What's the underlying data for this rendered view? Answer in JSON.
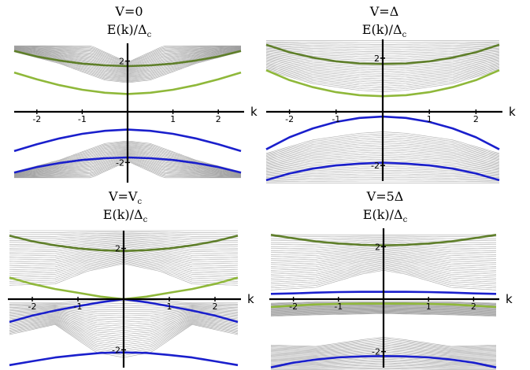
{
  "colors": {
    "bulk": "#9a9a9a",
    "green_upper": "#5f7f2a",
    "green_lower": "#8fb83a",
    "blue": "#1a1fcc",
    "axis": "#000000"
  },
  "chart_data": [
    {
      "type": "line",
      "title_var": "V=0",
      "title_sub": "",
      "ylabel": "E(k)/Δ",
      "ylabel_sub": "c",
      "xlabel": "k",
      "xlim": [
        -2.5,
        2.5
      ],
      "ylim": [
        -2.7,
        2.7
      ],
      "xticks": [
        "-2",
        "-1",
        "1",
        "2"
      ],
      "yticks": [
        "2",
        "-2"
      ],
      "series": [
        {
          "role": "bulk-upper",
          "min": [
            [
              -2.5,
              2.37
            ],
            [
              -1.5,
              1.9
            ],
            [
              -0.5,
              1.25
            ],
            [
              0,
              1.15
            ],
            [
              0.5,
              1.25
            ],
            [
              1.5,
              1.9
            ],
            [
              2.5,
              2.37
            ]
          ],
          "max": [
            [
              -2.5,
              2.6
            ],
            [
              -1.5,
              2.6
            ],
            [
              -0.8,
              2.6
            ],
            [
              0,
              1.95
            ],
            [
              0.8,
              2.6
            ],
            [
              1.5,
              2.6
            ],
            [
              2.5,
              2.6
            ]
          ]
        },
        {
          "role": "bulk-lower",
          "min": [
            [
              -2.5,
              -2.6
            ],
            [
              -0.8,
              -2.6
            ],
            [
              0,
              -1.95
            ],
            [
              0.8,
              -2.6
            ],
            [
              2.5,
              -2.6
            ]
          ],
          "max": [
            [
              -2.5,
              -2.37
            ],
            [
              -1.5,
              -1.9
            ],
            [
              -0.5,
              -1.25
            ],
            [
              0,
              -1.15
            ],
            [
              0.5,
              -1.25
            ],
            [
              1.5,
              -1.9
            ],
            [
              2.5,
              -2.37
            ]
          ]
        },
        {
          "role": "green-upper",
          "x": [
            -2.5,
            -2,
            -1.5,
            -1,
            -0.5,
            0,
            0.5,
            1,
            1.5,
            2,
            2.5
          ],
          "y": [
            2.4,
            2.18,
            2.02,
            1.9,
            1.83,
            1.8,
            1.83,
            1.9,
            2.02,
            2.18,
            2.4
          ]
        },
        {
          "role": "green-lower",
          "x": [
            -2.5,
            -2,
            -1.5,
            -1,
            -0.5,
            0,
            0.5,
            1,
            1.5,
            2,
            2.5
          ],
          "y": [
            1.55,
            1.28,
            1.05,
            0.87,
            0.75,
            0.7,
            0.75,
            0.87,
            1.05,
            1.28,
            1.55
          ]
        },
        {
          "role": "blue-upper",
          "x": [
            -2.5,
            -2,
            -1.5,
            -1,
            -0.5,
            0,
            0.5,
            1,
            1.5,
            2,
            2.5
          ],
          "y": [
            -1.55,
            -1.28,
            -1.05,
            -0.87,
            -0.75,
            -0.7,
            -0.75,
            -0.87,
            -1.05,
            -1.28,
            -1.55
          ]
        },
        {
          "role": "blue-lower",
          "x": [
            -2.5,
            -2,
            -1.5,
            -1,
            -0.5,
            0,
            0.5,
            1,
            1.5,
            2,
            2.5
          ],
          "y": [
            -2.4,
            -2.18,
            -2.02,
            -1.9,
            -1.83,
            -1.8,
            -1.83,
            -1.9,
            -2.02,
            -2.18,
            -2.4
          ]
        }
      ]
    },
    {
      "type": "line",
      "title_var": "V=Δ",
      "title_sub": "",
      "ylabel": "E(k)/Δ",
      "ylabel_sub": "c",
      "xlabel": "k",
      "xlim": [
        -2.5,
        2.5
      ],
      "ylim": [
        -2.7,
        2.7
      ],
      "xticks": [
        "-2",
        "-1",
        "1",
        "2"
      ],
      "yticks": [
        "2",
        "-2"
      ],
      "series": [
        {
          "role": "bulk-upper",
          "min": [
            [
              -2.5,
              1.55
            ],
            [
              -1.5,
              1.05
            ],
            [
              -0.5,
              0.8
            ],
            [
              0,
              0.75
            ],
            [
              0.5,
              0.8
            ],
            [
              1.5,
              1.05
            ],
            [
              2.5,
              1.55
            ]
          ],
          "max": [
            [
              -2.5,
              2.65
            ],
            [
              -1.5,
              2.65
            ],
            [
              0,
              2.65
            ],
            [
              1.5,
              2.65
            ],
            [
              2.5,
              2.65
            ]
          ]
        },
        {
          "role": "bulk-lower",
          "min": [
            [
              -2.5,
              -2.65
            ],
            [
              -1.5,
              -2.65
            ],
            [
              0,
              -2.65
            ],
            [
              1.5,
              -2.65
            ],
            [
              2.5,
              -2.65
            ]
          ],
          "max": [
            [
              -2.5,
              -1.55
            ],
            [
              -1.5,
              -1.05
            ],
            [
              -0.5,
              -0.8
            ],
            [
              0,
              -0.75
            ],
            [
              0.5,
              -0.8
            ],
            [
              1.5,
              -1.05
            ],
            [
              2.5,
              -1.55
            ]
          ]
        },
        {
          "role": "green-upper",
          "x": [
            -2.5,
            -2,
            -1.5,
            -1,
            -0.5,
            0,
            0.5,
            1,
            1.5,
            2,
            2.5
          ],
          "y": [
            2.5,
            2.22,
            2.02,
            1.88,
            1.8,
            1.78,
            1.8,
            1.88,
            2.02,
            2.22,
            2.5
          ]
        },
        {
          "role": "green-lower",
          "x": [
            -2.5,
            -2,
            -1.5,
            -1,
            -0.5,
            0,
            0.5,
            1,
            1.5,
            2,
            2.5
          ],
          "y": [
            1.55,
            1.18,
            0.92,
            0.73,
            0.62,
            0.58,
            0.62,
            0.73,
            0.92,
            1.18,
            1.55
          ]
        },
        {
          "role": "blue-upper",
          "x": [
            -2.5,
            -2,
            -1.5,
            -1,
            -0.5,
            0,
            0.5,
            1,
            1.5,
            2,
            2.5
          ],
          "y": [
            -1.4,
            -0.95,
            -0.62,
            -0.38,
            -0.23,
            -0.18,
            -0.23,
            -0.38,
            -0.62,
            -0.95,
            -1.4
          ]
        },
        {
          "role": "blue-lower",
          "x": [
            -2.5,
            -2,
            -1.5,
            -1,
            -0.5,
            0,
            0.5,
            1,
            1.5,
            2,
            2.5
          ],
          "y": [
            -2.55,
            -2.3,
            -2.12,
            -2.0,
            -1.93,
            -1.9,
            -1.93,
            -2.0,
            -2.12,
            -2.3,
            -2.55
          ]
        }
      ]
    },
    {
      "type": "line",
      "title_var": "V=V",
      "title_sub": "c",
      "ylabel": "E(k)/Δ",
      "ylabel_sub": "c",
      "xlabel": "k",
      "xlim": [
        -2.5,
        2.5
      ],
      "ylim": [
        -2.7,
        2.7
      ],
      "xticks": [
        "-2",
        "-1",
        "1",
        "2"
      ],
      "yticks": [
        "2",
        "-2"
      ],
      "series": [
        {
          "role": "bulk-upper",
          "min": [
            [
              -2.5,
              0.55
            ],
            [
              -1.5,
              0.6
            ],
            [
              -0.8,
              1.1
            ],
            [
              0,
              1.4
            ],
            [
              0.8,
              1.1
            ],
            [
              1.5,
              0.6
            ],
            [
              2.5,
              0.55
            ]
          ],
          "max": [
            [
              -2.5,
              2.7
            ],
            [
              -1.5,
              2.7
            ],
            [
              0,
              2.7
            ],
            [
              1.5,
              2.7
            ],
            [
              2.5,
              2.7
            ]
          ]
        },
        {
          "role": "bulk-lower",
          "min": [
            [
              -2.5,
              -1.4
            ],
            [
              -1.5,
              -1.0
            ],
            [
              -0.6,
              -2.1
            ],
            [
              0,
              -2.3
            ],
            [
              0.6,
              -2.1
            ],
            [
              1.5,
              -1.0
            ],
            [
              2.5,
              -1.4
            ]
          ],
          "max": [
            [
              -2.5,
              -0.15
            ],
            [
              -1.5,
              -0.15
            ],
            [
              -0.6,
              -0.05
            ],
            [
              0,
              0.0
            ],
            [
              0.6,
              -0.05
            ],
            [
              1.5,
              -0.15
            ],
            [
              2.5,
              -0.15
            ]
          ]
        },
        {
          "role": "green-upper",
          "x": [
            -2.5,
            -2,
            -1.5,
            -1,
            -0.5,
            0,
            0.5,
            1,
            1.5,
            2,
            2.5
          ],
          "y": [
            2.5,
            2.28,
            2.12,
            2.0,
            1.93,
            1.9,
            1.93,
            2.0,
            2.12,
            2.28,
            2.5
          ]
        },
        {
          "role": "green-lower",
          "x": [
            -2.5,
            -2,
            -1.5,
            -1,
            -0.5,
            0,
            0.5,
            1,
            1.5,
            2,
            2.5
          ],
          "y": [
            0.85,
            0.6,
            0.4,
            0.25,
            0.1,
            0.0,
            0.1,
            0.25,
            0.4,
            0.6,
            0.85
          ]
        },
        {
          "role": "blue-upper",
          "x": [
            -2.5,
            -2,
            -1.5,
            -1,
            -0.5,
            0,
            0.5,
            1,
            1.5,
            2,
            2.5
          ],
          "y": [
            -0.9,
            -0.65,
            -0.45,
            -0.28,
            -0.12,
            0.0,
            -0.12,
            -0.28,
            -0.45,
            -0.65,
            -0.9
          ]
        },
        {
          "role": "blue-lower",
          "x": [
            -2.5,
            -2,
            -1.5,
            -1,
            -0.5,
            0,
            0.5,
            1,
            1.5,
            2,
            2.5
          ],
          "y": [
            -2.6,
            -2.45,
            -2.3,
            -2.2,
            -2.12,
            -2.1,
            -2.12,
            -2.2,
            -2.3,
            -2.45,
            -2.6
          ]
        }
      ]
    },
    {
      "type": "line",
      "title_var": "V=5Δ",
      "title_sub": "",
      "ylabel": "E(k)/Δ",
      "ylabel_sub": "c",
      "xlabel": "k",
      "xlim": [
        -2.5,
        2.5
      ],
      "ylim": [
        -2.7,
        2.7
      ],
      "xticks": [
        "-2",
        "-1",
        "1",
        "2"
      ],
      "yticks": [
        "2",
        "-2"
      ],
      "series": [
        {
          "role": "bulk-upper",
          "min": [
            [
              -2.5,
              0.35
            ],
            [
              -1.5,
              0.45
            ],
            [
              -0.5,
              0.95
            ],
            [
              0,
              1.1
            ],
            [
              0.5,
              0.95
            ],
            [
              1.5,
              0.45
            ],
            [
              2.5,
              0.35
            ]
          ],
          "max": [
            [
              -2.5,
              2.45
            ],
            [
              -1.5,
              2.45
            ],
            [
              0,
              2.45
            ],
            [
              1.5,
              2.45
            ],
            [
              2.5,
              2.45
            ]
          ]
        },
        {
          "role": "bulk-mid",
          "min": [
            [
              -2.5,
              -0.65
            ],
            [
              -1.5,
              -0.6
            ],
            [
              0,
              -0.55
            ],
            [
              1.5,
              -0.6
            ],
            [
              2.5,
              -0.65
            ]
          ],
          "max": [
            [
              -2.5,
              -0.15
            ],
            [
              -1.5,
              -0.1
            ],
            [
              0,
              -0.1
            ],
            [
              1.5,
              -0.1
            ],
            [
              2.5,
              -0.15
            ]
          ]
        },
        {
          "role": "bulk-lower",
          "min": [
            [
              -2.5,
              -2.75
            ],
            [
              -1.5,
              -2.75
            ],
            [
              0,
              -2.75
            ],
            [
              1.5,
              -2.75
            ],
            [
              2.5,
              -2.75
            ]
          ],
          "max": [
            [
              -2.5,
              -1.75
            ],
            [
              -1.5,
              -1.8
            ],
            [
              -0.5,
              -1.55
            ],
            [
              0,
              -1.45
            ],
            [
              0.5,
              -1.55
            ],
            [
              1.5,
              -1.8
            ],
            [
              2.5,
              -1.75
            ]
          ]
        },
        {
          "role": "green-upper",
          "x": [
            -2.5,
            -2,
            -1.5,
            -1,
            -0.5,
            0,
            0.5,
            1,
            1.5,
            2,
            2.5
          ],
          "y": [
            2.45,
            2.32,
            2.2,
            2.12,
            2.07,
            2.05,
            2.07,
            2.12,
            2.2,
            2.32,
            2.45
          ]
        },
        {
          "role": "green-lower",
          "x": [
            -2.5,
            -2,
            -1.5,
            -1,
            -0.5,
            0,
            0.5,
            1,
            1.5,
            2,
            2.5
          ],
          "y": [
            -0.3,
            -0.25,
            -0.2,
            -0.18,
            -0.17,
            -0.17,
            -0.17,
            -0.18,
            -0.2,
            -0.25,
            -0.3
          ]
        },
        {
          "role": "blue-upper",
          "x": [
            -2.5,
            -2,
            -1.5,
            -1,
            -0.5,
            0,
            0.5,
            1,
            1.5,
            2,
            2.5
          ],
          "y": [
            0.2,
            0.22,
            0.25,
            0.27,
            0.28,
            0.28,
            0.28,
            0.27,
            0.25,
            0.22,
            0.2
          ]
        },
        {
          "role": "blue-lower",
          "x": [
            -2.5,
            -2,
            -1.5,
            -1,
            -0.5,
            0,
            0.5,
            1,
            1.5,
            2,
            2.5
          ],
          "y": [
            -2.6,
            -2.42,
            -2.3,
            -2.22,
            -2.18,
            -2.17,
            -2.18,
            -2.22,
            -2.3,
            -2.42,
            -2.6
          ]
        }
      ]
    }
  ]
}
